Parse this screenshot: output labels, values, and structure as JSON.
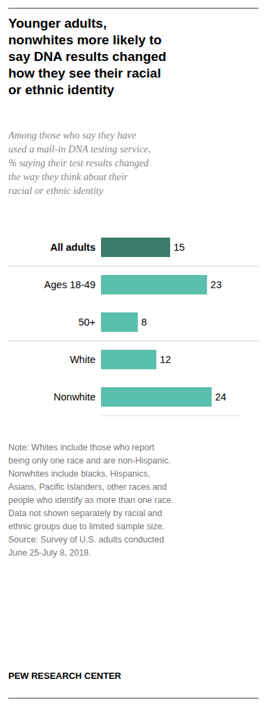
{
  "chart_data": {
    "type": "bar",
    "orientation": "horizontal",
    "title": "Younger adults,\nnonwhites more likely to\nsay DNA results changed\nhow they see their racial\nor ethnic identity",
    "subtitle": "Among those who say they have\nused a mail-in DNA testing service,\n% saying their test results changed\nthe way they think about their\nracial or ethnic identity",
    "categories": [
      "All adults",
      "Ages 18-49",
      "50+",
      "White",
      "Nonwhite"
    ],
    "values": [
      15,
      23,
      8,
      12,
      24
    ],
    "colors": [
      "#3d7d6e",
      "#5bbfad",
      "#5bbfad",
      "#5bbfad",
      "#5bbfad"
    ],
    "xlim": [
      0,
      30
    ],
    "data_labels": true,
    "tick_labels": "y",
    "grid": false,
    "note": [
      "Note: Whites include those who report",
      "being only one race and are non-Hispanic.",
      "Nonwhites include blacks, Hispanics,",
      "Asians, Pacific Islanders, other races and",
      "people who identify as more than one race.",
      "Data not shown separately by racial and",
      "ethnic groups due to limited sample size.",
      "Source: Survey of U.S. adults conducted",
      "June 25-July 8, 2019."
    ],
    "source": "PEW RESEARCH CENTER"
  }
}
